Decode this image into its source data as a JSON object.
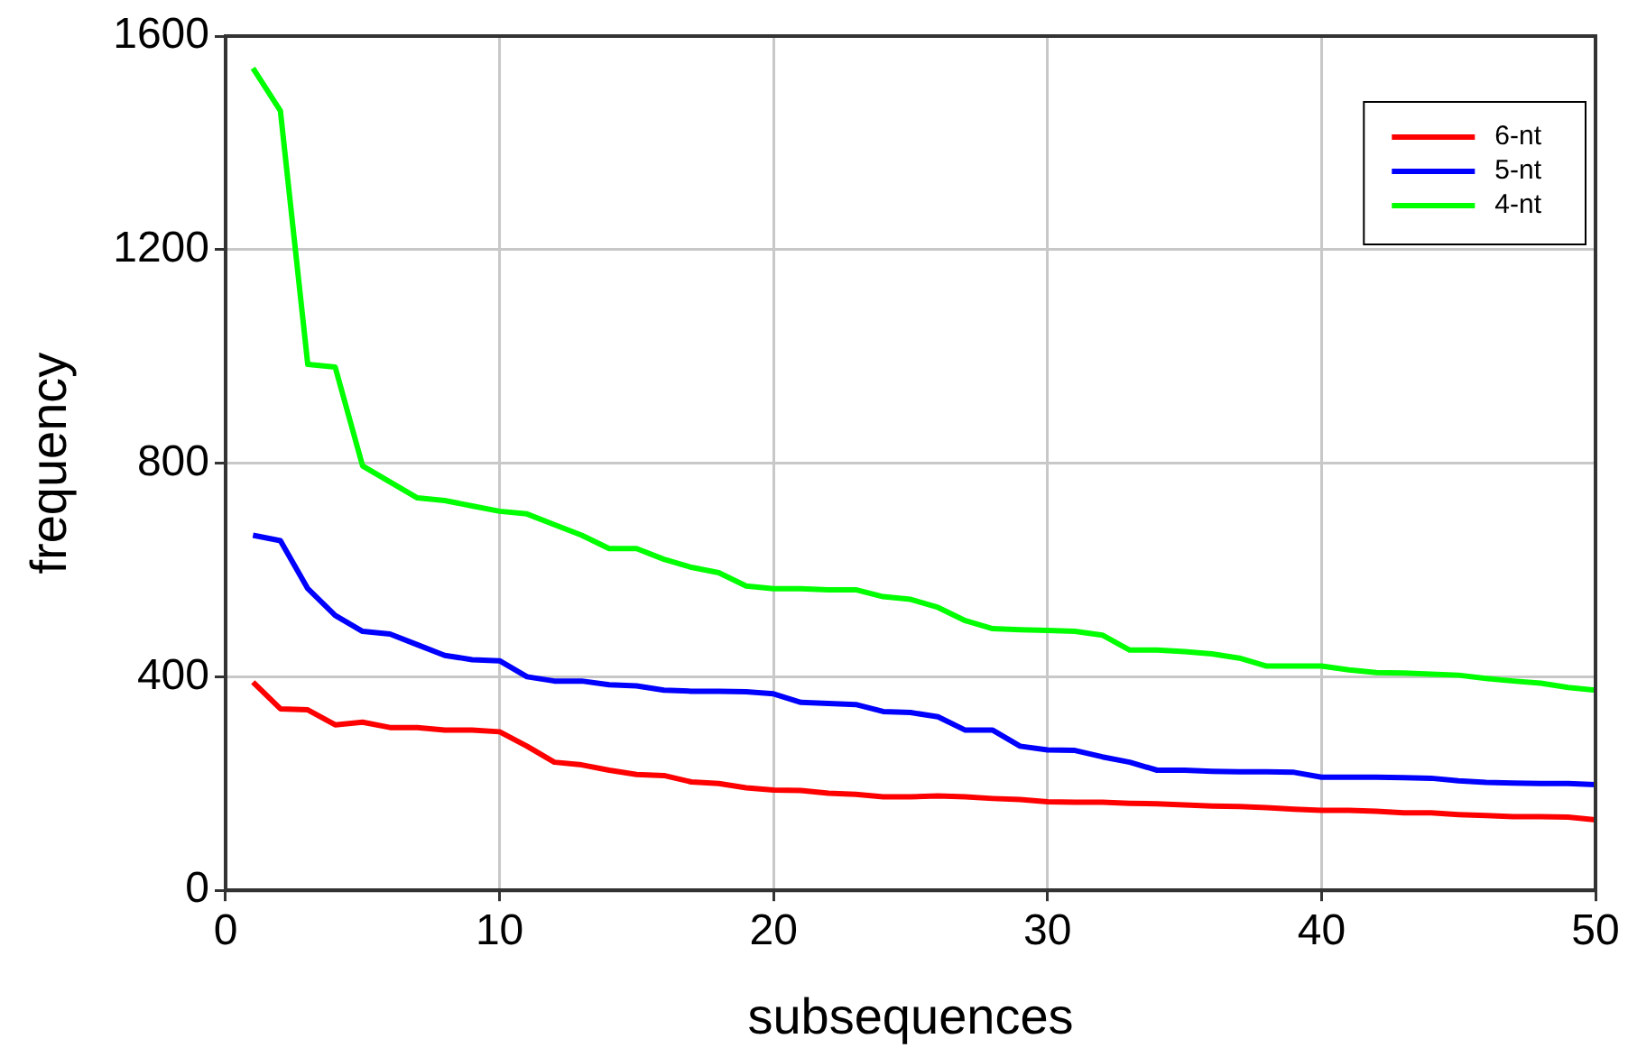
{
  "chart_data": {
    "type": "line",
    "xlabel": "subsequences",
    "ylabel": "frequency",
    "x": [
      1,
      2,
      3,
      4,
      5,
      6,
      7,
      8,
      9,
      10,
      11,
      12,
      13,
      14,
      15,
      16,
      17,
      18,
      19,
      20,
      21,
      22,
      23,
      24,
      25,
      26,
      27,
      28,
      29,
      30,
      31,
      32,
      33,
      34,
      35,
      36,
      37,
      38,
      39,
      40,
      41,
      42,
      43,
      44,
      45,
      46,
      47,
      48,
      49,
      50
    ],
    "series": [
      {
        "name": "6-nt",
        "color": "#ff0000",
        "values": [
          390,
          340,
          338,
          310,
          315,
          305,
          305,
          300,
          300,
          297,
          270,
          240,
          235,
          225,
          217,
          215,
          203,
          200,
          192,
          188,
          187,
          182,
          180,
          175,
          175,
          177,
          175,
          172,
          170,
          166,
          165,
          165,
          163,
          162,
          160,
          158,
          157,
          155,
          152,
          150,
          150,
          148,
          145,
          145,
          142,
          140,
          138,
          138,
          137,
          132
        ]
      },
      {
        "name": "5-nt",
        "color": "#0000ff",
        "values": [
          665,
          655,
          565,
          515,
          485,
          480,
          460,
          440,
          432,
          430,
          400,
          392,
          392,
          385,
          383,
          375,
          373,
          373,
          372,
          368,
          352,
          350,
          348,
          335,
          333,
          325,
          300,
          300,
          270,
          263,
          262,
          250,
          240,
          225,
          225,
          223,
          222,
          222,
          221,
          212,
          212,
          212,
          211,
          210,
          205,
          202,
          201,
          200,
          200,
          198
        ]
      },
      {
        "name": "4-nt",
        "color": "#00ff00",
        "values": [
          1540,
          1460,
          985,
          980,
          795,
          765,
          735,
          730,
          720,
          710,
          705,
          685,
          665,
          640,
          640,
          620,
          605,
          595,
          570,
          565,
          565,
          563,
          563,
          550,
          545,
          530,
          505,
          490,
          488,
          487,
          485,
          478,
          450,
          450,
          447,
          443,
          435,
          420,
          420,
          420,
          413,
          408,
          407,
          405,
          403,
          397,
          392,
          388,
          380,
          375
        ]
      }
    ],
    "xlim": [
      0,
      50
    ],
    "xticks": [
      0,
      10,
      20,
      30,
      40,
      50
    ],
    "ylim": [
      0,
      1600
    ],
    "yticks": [
      0,
      400,
      800,
      1200,
      1600
    ],
    "grid": true,
    "legend": "top right",
    "marker": "none",
    "line_style": "solid"
  }
}
